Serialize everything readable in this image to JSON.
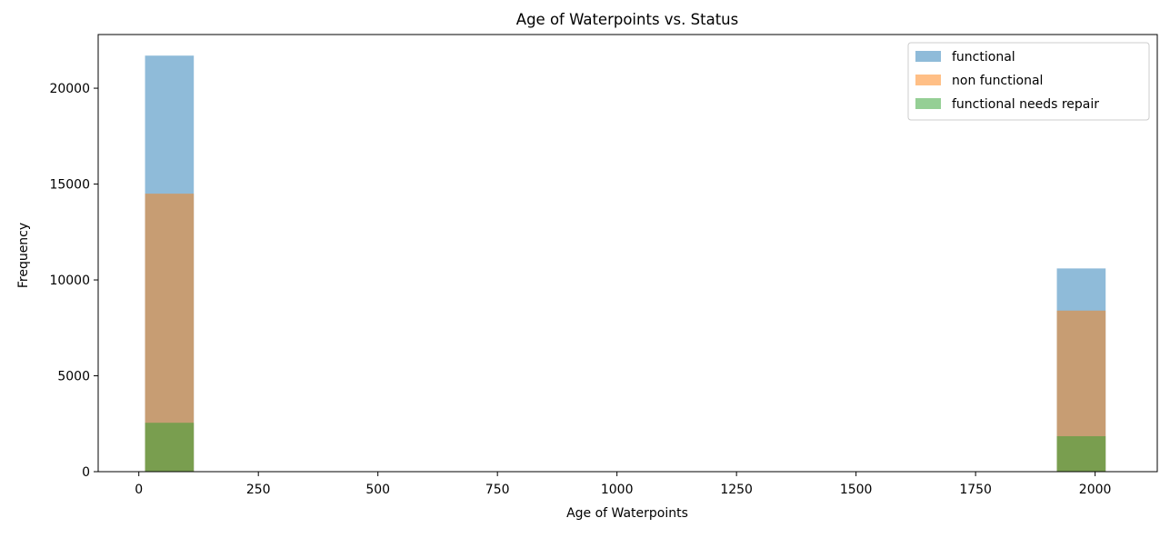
{
  "chart_data": {
    "type": "histogram",
    "title": "Age of Waterpoints vs. Status",
    "xlabel": "Age of Waterpoints",
    "ylabel": "Frequency",
    "xlim": [
      -85,
      2130
    ],
    "ylim": [
      0,
      22800
    ],
    "x_ticks": [
      0,
      250,
      500,
      750,
      1000,
      1250,
      1500,
      1750,
      2000
    ],
    "y_ticks": [
      0,
      5000,
      10000,
      15000,
      20000
    ],
    "bar_opacity": 0.5,
    "legend_position": "top-right",
    "grid": false,
    "bins": [
      {
        "start": 13,
        "end": 115
      },
      {
        "start": 1920,
        "end": 2022
      }
    ],
    "series": [
      {
        "name": "functional",
        "color": "#1f77b4",
        "values": [
          21700,
          10600
        ]
      },
      {
        "name": "non functional",
        "color": "#ff7f0e",
        "values": [
          14500,
          8400
        ]
      },
      {
        "name": "functional needs repair",
        "color": "#2ca02c",
        "values": [
          2550,
          1850
        ]
      }
    ]
  }
}
